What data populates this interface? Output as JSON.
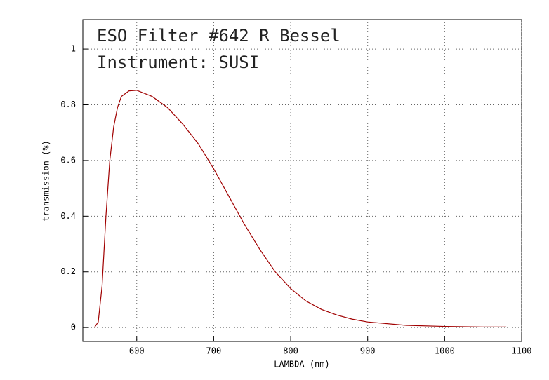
{
  "chart_data": {
    "type": "line",
    "title": "ESO Filter #642 R Bessel",
    "subtitle": "Instrument: SUSI",
    "x_label": "LAMBDA (nm)",
    "y_label": "transmission (%)",
    "x": [
      545,
      550,
      555,
      560,
      565,
      570,
      575,
      580,
      590,
      600,
      620,
      640,
      660,
      680,
      700,
      720,
      740,
      760,
      780,
      800,
      820,
      840,
      860,
      880,
      900,
      950,
      1000,
      1050,
      1080
    ],
    "series": [
      {
        "name": "transmission",
        "color": "#a00000",
        "values": [
          0,
          0.02,
          0.15,
          0.4,
          0.6,
          0.72,
          0.79,
          0.83,
          0.85,
          0.852,
          0.83,
          0.79,
          0.73,
          0.66,
          0.57,
          0.47,
          0.37,
          0.28,
          0.2,
          0.14,
          0.095,
          0.065,
          0.045,
          0.03,
          0.02,
          0.008,
          0.004,
          0.002,
          0.002
        ]
      }
    ],
    "xlim": [
      530,
      1100
    ],
    "xticks": [
      600,
      700,
      800,
      900,
      1000,
      1100
    ],
    "ylim": [
      -0.05,
      1.106
    ],
    "yticks": [
      0,
      0.2,
      0.4,
      0.6,
      0.8,
      1
    ],
    "grid": true
  }
}
